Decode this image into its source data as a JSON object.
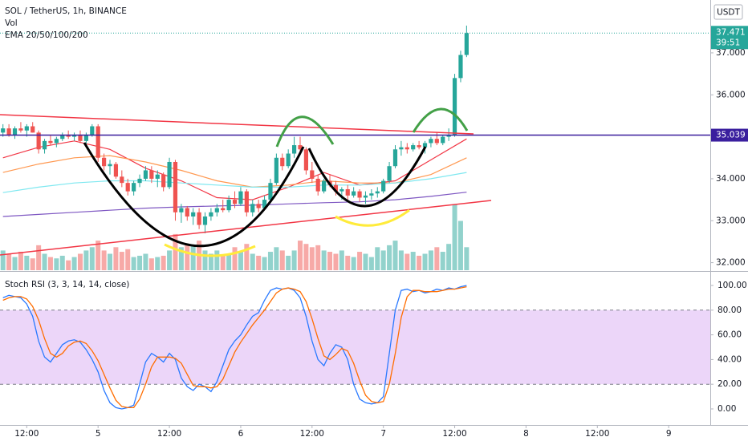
{
  "header": {
    "symbol": "SOL / TetherUS, 1h, BINANCE",
    "vol": "Vol",
    "ema": "EMA 20/50/100/200",
    "currency": "USDT"
  },
  "chart_data": [
    {
      "type": "candlestick",
      "open": [
        35.1,
        35.2,
        35.05,
        35.2,
        35.15,
        35.25,
        35.1,
        34.7,
        34.9,
        34.85,
        34.95,
        35.05,
        35.0,
        35.05,
        34.9,
        35.05,
        35.25,
        34.5,
        34.3,
        34.35,
        34.05,
        33.9,
        33.7,
        33.9,
        34.0,
        34.2,
        34.0,
        34.1,
        33.8,
        34.4,
        33.2,
        33.3,
        33.1,
        33.2,
        32.9,
        33.1,
        33.2,
        33.3,
        33.25,
        33.5,
        33.4,
        33.7,
        33.2,
        33.4,
        33.3,
        33.5,
        33.9,
        34.5,
        34.3,
        34.6,
        34.8,
        34.7,
        34.2,
        34.0,
        33.7,
        33.95,
        33.85,
        33.7,
        33.75,
        33.6,
        33.7,
        33.55,
        33.6,
        33.65,
        33.7,
        33.95,
        34.3,
        34.7,
        34.75,
        34.7,
        34.8,
        34.75,
        34.85,
        34.95,
        34.85,
        35.0,
        35.05,
        36.4,
        36.95
      ],
      "high": [
        35.3,
        35.3,
        35.25,
        35.35,
        35.3,
        35.35,
        35.15,
        34.95,
        35.05,
        35.0,
        35.1,
        35.15,
        35.1,
        35.15,
        35.1,
        35.3,
        35.3,
        34.6,
        34.45,
        34.4,
        34.2,
        34.0,
        33.95,
        34.1,
        34.3,
        34.3,
        34.2,
        34.15,
        34.5,
        34.45,
        33.4,
        33.35,
        33.3,
        33.3,
        33.2,
        33.3,
        33.4,
        33.5,
        33.6,
        33.7,
        33.8,
        33.75,
        33.5,
        33.5,
        33.6,
        34.0,
        34.6,
        34.6,
        34.7,
        35.0,
        35.0,
        34.75,
        34.4,
        34.1,
        34.0,
        34.1,
        33.95,
        33.8,
        33.85,
        33.8,
        33.75,
        33.7,
        33.75,
        33.8,
        34.0,
        34.4,
        34.8,
        34.9,
        34.85,
        34.85,
        34.9,
        34.9,
        35.0,
        35.1,
        35.05,
        35.2,
        36.5,
        37.05,
        37.65
      ],
      "low": [
        35.0,
        35.0,
        34.95,
        35.1,
        35.0,
        35.1,
        34.6,
        34.6,
        34.8,
        34.75,
        34.9,
        34.95,
        34.9,
        34.85,
        34.8,
        35.0,
        34.4,
        34.2,
        34.1,
        34.0,
        33.8,
        33.6,
        33.6,
        33.8,
        33.95,
        33.9,
        33.8,
        33.7,
        33.75,
        33.0,
        32.95,
        33.0,
        32.9,
        32.8,
        32.7,
        33.0,
        33.1,
        33.2,
        33.2,
        33.3,
        33.35,
        33.1,
        33.1,
        33.2,
        33.25,
        33.45,
        33.85,
        34.2,
        34.25,
        34.5,
        34.6,
        34.1,
        33.9,
        33.6,
        33.65,
        33.8,
        33.6,
        33.5,
        33.5,
        33.55,
        33.45,
        33.4,
        33.5,
        33.55,
        33.65,
        33.9,
        34.25,
        34.55,
        34.6,
        34.65,
        34.7,
        34.6,
        34.75,
        34.8,
        34.8,
        34.9,
        35.0,
        36.3,
        36.9
      ],
      "close": [
        35.2,
        35.05,
        35.2,
        35.15,
        35.25,
        35.1,
        34.7,
        34.9,
        34.85,
        34.95,
        35.05,
        35.0,
        35.05,
        34.9,
        35.05,
        35.25,
        34.5,
        34.3,
        34.35,
        34.05,
        33.9,
        33.7,
        33.9,
        34.0,
        34.2,
        34.0,
        34.1,
        33.8,
        34.4,
        33.2,
        33.3,
        33.1,
        33.2,
        32.9,
        33.1,
        33.2,
        33.3,
        33.25,
        33.5,
        33.4,
        33.7,
        33.2,
        33.4,
        33.3,
        33.5,
        33.9,
        34.5,
        34.3,
        34.6,
        34.8,
        34.7,
        34.2,
        34.0,
        33.7,
        33.95,
        33.85,
        33.7,
        33.75,
        33.6,
        33.7,
        33.55,
        33.6,
        33.65,
        33.7,
        33.95,
        34.3,
        34.7,
        34.75,
        34.7,
        34.8,
        34.75,
        34.85,
        34.95,
        34.85,
        35.0,
        35.05,
        36.4,
        36.95,
        37.471
      ],
      "volume": [
        30,
        25,
        20,
        28,
        22,
        18,
        38,
        25,
        20,
        18,
        22,
        15,
        20,
        25,
        30,
        35,
        45,
        30,
        25,
        35,
        28,
        32,
        20,
        22,
        25,
        18,
        20,
        22,
        30,
        55,
        35,
        40,
        38,
        45,
        30,
        25,
        30,
        22,
        25,
        35,
        28,
        40,
        25,
        22,
        20,
        28,
        35,
        30,
        22,
        30,
        45,
        40,
        35,
        38,
        30,
        28,
        25,
        30,
        22,
        20,
        28,
        25,
        20,
        35,
        30,
        38,
        45,
        30,
        25,
        28,
        22,
        25,
        30,
        35,
        28,
        40,
        100,
        75,
        35
      ],
      "up_color": "#26a69a",
      "down_color": "#ef5350",
      "ema": [
        {
          "color": "#f23645",
          "x": [
            0,
            6,
            12,
            18,
            24,
            30,
            36,
            42,
            48,
            54,
            60,
            66,
            72,
            78
          ],
          "values": [
            34.5,
            34.75,
            34.9,
            34.7,
            34.25,
            33.95,
            33.55,
            33.5,
            33.8,
            34.15,
            33.85,
            33.95,
            34.45,
            34.95
          ]
        },
        {
          "color": "#ff9850",
          "x": [
            0,
            6,
            12,
            18,
            24,
            30,
            36,
            42,
            48,
            54,
            60,
            66,
            72,
            78
          ],
          "values": [
            34.15,
            34.35,
            34.5,
            34.55,
            34.4,
            34.2,
            33.95,
            33.8,
            33.85,
            33.95,
            33.9,
            33.9,
            34.1,
            34.5
          ]
        },
        {
          "color": "#7fe8f0",
          "x": [
            0,
            6,
            12,
            18,
            24,
            30,
            36,
            42,
            48,
            54,
            60,
            66,
            72,
            78
          ],
          "values": [
            33.67,
            33.8,
            33.9,
            33.95,
            33.95,
            33.9,
            33.85,
            33.8,
            33.8,
            33.85,
            33.85,
            33.9,
            34.0,
            34.15
          ]
        },
        {
          "color": "#7e57c2",
          "x": [
            0,
            6,
            12,
            18,
            24,
            30,
            36,
            42,
            48,
            54,
            60,
            66,
            72,
            78
          ],
          "values": [
            33.1,
            33.15,
            33.2,
            33.25,
            33.3,
            33.33,
            33.35,
            33.37,
            33.4,
            33.43,
            33.45,
            33.5,
            33.58,
            33.68
          ]
        }
      ],
      "xlim": [
        -0.5,
        119
      ],
      "xticks": [
        {
          "value": 4,
          "label": "12:00"
        },
        {
          "value": 16,
          "label": "5"
        },
        {
          "value": 28,
          "label": "12:00"
        },
        {
          "value": 40,
          "label": "6"
        },
        {
          "value": 52,
          "label": "12:00"
        },
        {
          "value": 64,
          "label": "7"
        },
        {
          "value": 76,
          "label": "12:00"
        },
        {
          "value": 88,
          "label": "8"
        },
        {
          "value": 100,
          "label": "12:00"
        },
        {
          "value": 112,
          "label": "9"
        }
      ],
      "ylim": [
        31.82,
        38.26
      ],
      "yticks": [
        {
          "value": 37,
          "label": "37.000"
        },
        {
          "value": 36,
          "label": "36.000"
        },
        {
          "value": 34,
          "label": "34.000"
        },
        {
          "value": 33,
          "label": "33.000"
        },
        {
          "value": 32,
          "label": "32.000"
        }
      ],
      "level": 35.039,
      "level_color": "#3a1f9e",
      "last_price": 37.471,
      "countdown": "39:51"
    },
    {
      "type": "line",
      "title": "Stoch RSI (3, 3, 14, 14, close)",
      "series": [
        {
          "color": "#2979ff",
          "values": [
            90,
            92,
            91,
            90,
            85,
            75,
            55,
            42,
            38,
            45,
            52,
            55,
            56,
            54,
            48,
            40,
            30,
            15,
            5,
            1,
            0,
            1,
            3,
            20,
            38,
            45,
            42,
            38,
            45,
            40,
            25,
            18,
            15,
            20,
            18,
            14,
            22,
            35,
            48,
            55,
            60,
            68,
            75,
            78,
            88,
            96,
            98,
            97,
            98,
            96,
            90,
            75,
            55,
            40,
            35,
            45,
            52,
            50,
            40,
            20,
            8,
            5,
            4,
            5,
            10,
            45,
            80,
            96,
            97,
            95,
            96,
            94,
            95,
            97,
            96,
            98,
            97,
            99,
            100
          ]
        },
        {
          "color": "#ff6d00",
          "values": [
            88,
            90,
            91,
            91,
            89,
            83,
            72,
            57,
            45,
            42,
            45,
            51,
            54,
            55,
            53,
            47,
            39,
            28,
            17,
            7,
            2,
            1,
            1,
            8,
            20,
            34,
            42,
            42,
            42,
            41,
            37,
            28,
            19,
            18,
            18,
            17,
            18,
            24,
            35,
            46,
            54,
            61,
            68,
            74,
            80,
            87,
            94,
            97,
            98,
            97,
            95,
            87,
            73,
            57,
            43,
            40,
            44,
            49,
            47,
            37,
            23,
            11,
            6,
            5,
            6,
            20,
            45,
            74,
            91,
            96,
            96,
            95,
            95,
            95,
            96,
            97,
            97,
            98,
            99
          ]
        }
      ],
      "xlim": [
        -0.5,
        119
      ],
      "ylim": [
        -13,
        110.4
      ],
      "yticks": [
        {
          "value": 100,
          "label": "100.00"
        },
        {
          "value": 80,
          "label": "80.00"
        },
        {
          "value": 60,
          "label": "60.00"
        },
        {
          "value": 40,
          "label": "40.00"
        },
        {
          "value": 20,
          "label": "20.00"
        },
        {
          "value": 0,
          "label": "0.00"
        }
      ],
      "band": [
        20,
        80
      ],
      "band_color": "#e6c8f7"
    }
  ]
}
